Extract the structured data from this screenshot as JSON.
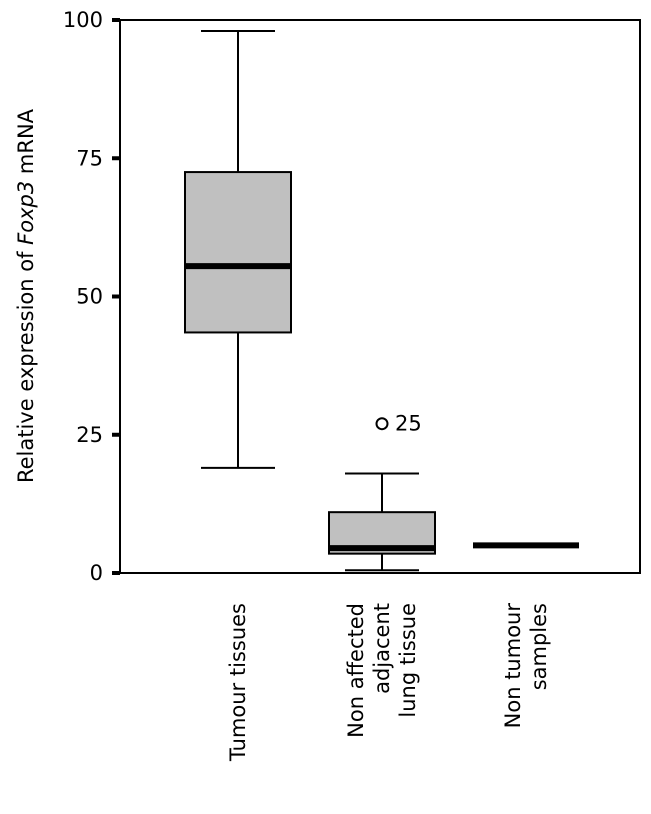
{
  "chart_data": {
    "type": "box",
    "ylabel_prefix": "Relative expression of ",
    "ylabel_gene": "Foxp3",
    "ylabel_suffix": " mRNA",
    "ylim": [
      0,
      100
    ],
    "yticks": [
      0,
      25,
      50,
      75,
      100
    ],
    "grid": false,
    "categories": [
      [
        "Tumour tissues"
      ],
      [
        "Non affected",
        "adjacent",
        "lung tissue"
      ],
      [
        "Non tumour",
        "samples"
      ]
    ],
    "boxes": [
      {
        "min": 19,
        "q1": 43.5,
        "median": 55.5,
        "q3": 72.5,
        "max": 98,
        "outliers": []
      },
      {
        "min": 0.5,
        "q1": 3.5,
        "median": 4.5,
        "q3": 11,
        "max": 18,
        "outliers": [
          {
            "value": 27,
            "label": "25"
          }
        ]
      },
      {
        "min": 5,
        "q1": 5,
        "median": 5,
        "q3": 5,
        "max": 5,
        "outliers": []
      }
    ],
    "colors": {
      "box_fill": "#c0c0c0",
      "stroke": "#000000"
    }
  }
}
